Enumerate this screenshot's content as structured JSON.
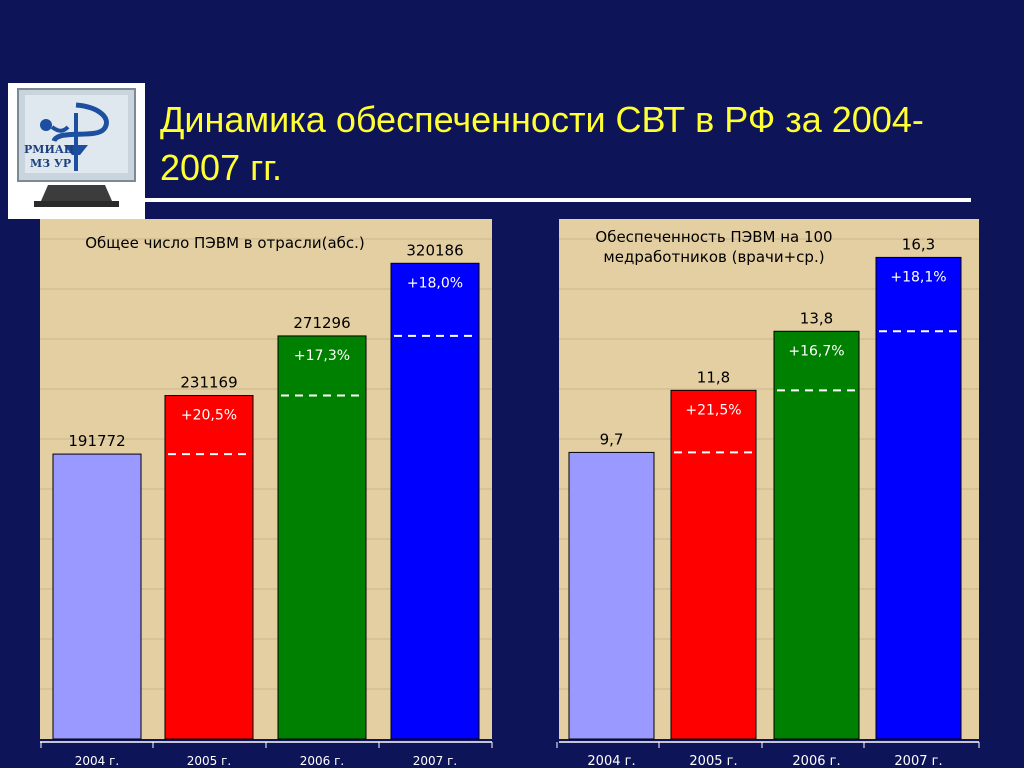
{
  "title": "Динамика обеспеченности СВТ в РФ за 2004-2007 гг.",
  "logo": {
    "text_line1": "РМИАЦ",
    "text_line2": "МЗ УР",
    "icon": "caduceus-monitor-icon"
  },
  "colors": {
    "background": "#0e1458",
    "title": "#ffff33",
    "panel": "#e4cfa2",
    "bar_2004": "#9999ff",
    "bar_2005": "#ff0000",
    "bar_2006": "#008000",
    "bar_2007": "#0000ff"
  },
  "chart_data": [
    {
      "type": "bar",
      "title": "Общее число ПЭВМ в отрасли(абс.)",
      "categories": [
        "2004 г.",
        "2005 г.",
        "2006 г.",
        "2007 г."
      ],
      "values": [
        191772,
        231169,
        271296,
        320186
      ],
      "value_labels": [
        "191772",
        "231169",
        "271296",
        "320186"
      ],
      "growth_labels": [
        "",
        "+20,5%",
        "+17,3%",
        "+18,0%"
      ],
      "ylim": [
        0,
        350000
      ],
      "grid": true
    },
    {
      "type": "bar",
      "title": "Обеспеченность ПЭВМ на 100 медработников (врачи+ср.)",
      "categories": [
        "2004 г.",
        "2005 г.",
        "2006 г.",
        "2007 г."
      ],
      "values": [
        9.7,
        11.8,
        13.8,
        16.3
      ],
      "value_labels": [
        "9,7",
        "11,8",
        "13,8",
        "16,3"
      ],
      "growth_labels": [
        "",
        "+21,5%",
        "+16,7%",
        "+18,1%"
      ],
      "ylim": [
        0,
        17.6
      ],
      "grid": true
    }
  ]
}
